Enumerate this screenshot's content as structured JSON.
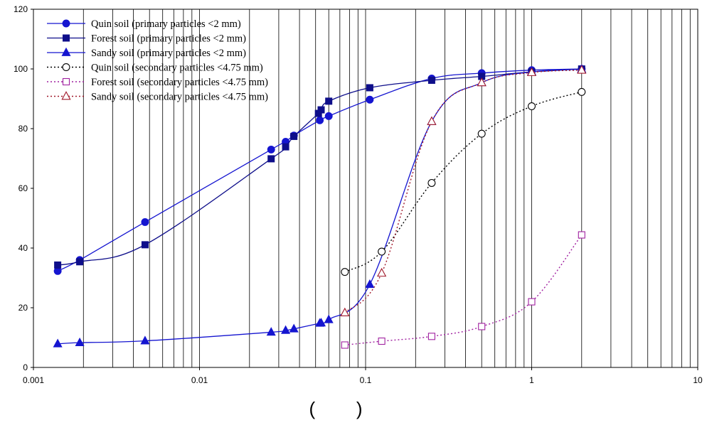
{
  "chart_data": {
    "type": "line",
    "x_scale": "log",
    "xlim": [
      0.001,
      10
    ],
    "ylim": [
      0,
      120
    ],
    "x_ticks": [
      0.001,
      0.01,
      0.1,
      1,
      10
    ],
    "x_tick_labels": [
      "0.001",
      "0.01",
      "0.1",
      "1",
      "10"
    ],
    "y_ticks": [
      0,
      20,
      40,
      60,
      80,
      100,
      120
    ],
    "y_tick_labels": [
      "0",
      "20",
      "40",
      "60",
      "80",
      "100",
      "120"
    ],
    "xlabel": "(        )",
    "ylabel": "",
    "grid": "vertical log gridlines",
    "legend_position": "top-left",
    "series": [
      {
        "name": "Quin soil (primary particles <2 mm)",
        "color": "#1515d0",
        "marker": "circle",
        "marker_fill": "filled",
        "dash": "solid",
        "x": [
          0.0014,
          0.0019,
          0.0047,
          0.027,
          0.033,
          0.037,
          0.053,
          0.06,
          0.106,
          0.25,
          0.5,
          1,
          2
        ],
        "y": [
          32.3,
          36,
          48.7,
          73,
          75.6,
          77.7,
          82.8,
          84.2,
          89.7,
          96.8,
          98.6,
          99.6,
          100
        ]
      },
      {
        "name": "Forest soil (primary particles <2 mm)",
        "color": "#0e0e8a",
        "marker": "square",
        "marker_fill": "filled",
        "dash": "solid",
        "x": [
          0.0014,
          0.0019,
          0.0047,
          0.027,
          0.033,
          0.037,
          0.052,
          0.054,
          0.06,
          0.106,
          0.25,
          0.5,
          1,
          2
        ],
        "y": [
          34.3,
          35.4,
          41.1,
          69.9,
          73.9,
          77.4,
          85.1,
          86.3,
          89.2,
          93.7,
          96.2,
          97.5,
          99,
          100
        ]
      },
      {
        "name": "Sandy soil (primary particles <2 mm)",
        "color": "#1515d0",
        "marker": "triangle",
        "marker_fill": "filled",
        "dash": "solid",
        "x": [
          0.0014,
          0.0019,
          0.0047,
          0.027,
          0.033,
          0.037,
          0.053,
          0.054,
          0.06,
          0.106,
          0.25,
          0.5,
          1,
          2
        ],
        "y": [
          7.9,
          8.3,
          8.9,
          11.8,
          12.4,
          12.9,
          14.8,
          14.9,
          16,
          27.8,
          82.4,
          95.4,
          99,
          99.9
        ]
      },
      {
        "name": "Quin soil (secondary particles <4.75 mm)",
        "color": "#000000",
        "marker": "circle",
        "marker_fill": "open",
        "dash": "dotted",
        "x": [
          0.075,
          0.125,
          0.25,
          0.5,
          1,
          2
        ],
        "y": [
          32,
          38.8,
          61.8,
          78.3,
          87.5,
          92.3
        ]
      },
      {
        "name": "Forest soil (secondary particles <4.75 mm)",
        "color": "#a020a0",
        "marker": "square",
        "marker_fill": "open",
        "dash": "dotted",
        "x": [
          0.075,
          0.125,
          0.25,
          0.5,
          1,
          2
        ],
        "y": [
          7.5,
          8.8,
          10.4,
          13.7,
          22,
          44.4
        ]
      },
      {
        "name": "Sandy soil (secondary particles <4.75 mm)",
        "color": "#a0182a",
        "marker": "triangle",
        "marker_fill": "open",
        "dash": "dotted",
        "x": [
          0.075,
          0.125,
          0.25,
          0.5,
          1,
          2
        ],
        "y": [
          18.3,
          31.6,
          82.4,
          95.4,
          98.8,
          99.6
        ]
      }
    ]
  }
}
